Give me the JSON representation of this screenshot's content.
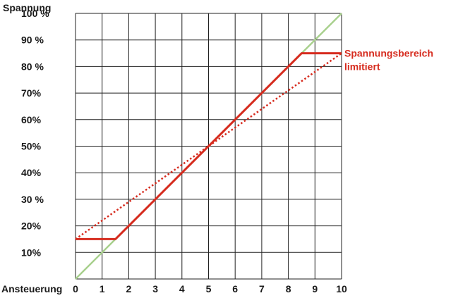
{
  "chart_data": {
    "type": "line",
    "xlabel": "Ansteuerung",
    "ylabel": "Spannung",
    "xlim": [
      0,
      10
    ],
    "ylim": [
      0,
      100
    ],
    "grid": true,
    "x_ticks": [
      "0",
      "1",
      "2",
      "3",
      "4",
      "5",
      "6",
      "7",
      "8",
      "9",
      "10"
    ],
    "y_ticks": [
      {
        "value": 10,
        "label": "10%"
      },
      {
        "value": 20,
        "label": "20%"
      },
      {
        "value": 30,
        "label": "30 %"
      },
      {
        "value": 40,
        "label": "40%"
      },
      {
        "value": 50,
        "label": "50%"
      },
      {
        "value": 60,
        "label": "60%"
      },
      {
        "value": 70,
        "label": "70%"
      },
      {
        "value": 80,
        "label": "80 %"
      },
      {
        "value": 90,
        "label": "90 %"
      },
      {
        "value": 100,
        "label": "100 %"
      }
    ],
    "series": [
      {
        "style": "solid",
        "color": "#a8d08d",
        "x": [
          0,
          10
        ],
        "y": [
          0,
          100
        ]
      },
      {
        "style": "dotted",
        "color": "#d62b1e",
        "x": [
          0,
          10
        ],
        "y": [
          15,
          85
        ]
      },
      {
        "style": "solid",
        "color": "#d62b1e",
        "x": [
          0,
          1.5,
          8.5,
          10
        ],
        "y": [
          15,
          15,
          85,
          85
        ]
      }
    ],
    "annotations": [
      {
        "lines": [
          "Spannungsbereich",
          "limitiert"
        ],
        "color": "#d62b1e",
        "anchor_x": 10,
        "anchor_y": 85
      }
    ]
  }
}
